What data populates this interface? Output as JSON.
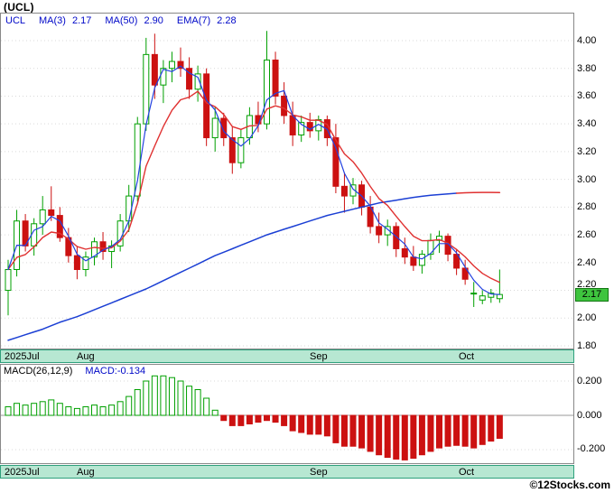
{
  "window": {
    "title": "(UCL)",
    "copyright": "©12Stocks.com"
  },
  "legend": {
    "symbol": "UCL",
    "items": [
      {
        "label": "MA(3)",
        "value": "2.17"
      },
      {
        "label": "MA(50)",
        "value": "2.90"
      },
      {
        "label": "EMA(7)",
        "value": "2.28"
      }
    ]
  },
  "price_tag": {
    "value": "2.17"
  },
  "macd_legend": {
    "label": "MACD(26,12,9)",
    "value": "MACD:-0.134"
  },
  "axes": {
    "price_ticks": [
      "4.00",
      "3.80",
      "3.60",
      "3.40",
      "3.20",
      "3.00",
      "2.80",
      "2.60",
      "2.40",
      "2.20",
      "2.00",
      "1.80"
    ],
    "macd_ticks": [
      "0.200",
      "0.000",
      "-0.200"
    ],
    "months": [
      {
        "label": "2025Jul"
      },
      {
        "label": "Aug"
      },
      {
        "label": "Sep"
      },
      {
        "label": "Oct"
      }
    ]
  },
  "colors": {
    "up": "#00a000",
    "down": "#cc1111",
    "ma3": "#2342e0",
    "ma50": "#1b3fd4",
    "ema7": "#e03131",
    "axis_bar_bg": "#b7e7d2",
    "axis_bar_border": "#2fa07c",
    "price_tag_bg": "#3ec43e",
    "grid": "#d9d9d9",
    "box": "#888888"
  },
  "chart_data": [
    {
      "type": "candlestick",
      "title": "(UCL) daily price with MA(3), MA(50), EMA(7)",
      "ylim": [
        1.78,
        4.2
      ],
      "yticks": [
        4.0,
        3.8,
        3.6,
        3.4,
        3.2,
        3.0,
        2.8,
        2.6,
        2.4,
        2.2,
        2.0,
        1.8
      ],
      "last_close": 2.17,
      "ma3_last": 2.17,
      "ma50_last": 2.9,
      "ema7_last": 2.28,
      "month_starts": [
        {
          "label": "2025Jul",
          "index": 0
        },
        {
          "label": "Aug",
          "index": 8
        },
        {
          "label": "Sep",
          "index": 35
        },
        {
          "label": "Oct",
          "index": 52
        }
      ],
      "candles": [
        [
          2.2,
          2.42,
          2.02,
          2.35
        ],
        [
          2.35,
          2.78,
          2.3,
          2.7
        ],
        [
          2.7,
          2.75,
          2.48,
          2.52
        ],
        [
          2.52,
          2.72,
          2.45,
          2.68
        ],
        [
          2.68,
          2.88,
          2.6,
          2.78
        ],
        [
          2.78,
          2.95,
          2.7,
          2.74
        ],
        [
          2.74,
          2.8,
          2.55,
          2.58
        ],
        [
          2.58,
          2.65,
          2.4,
          2.45
        ],
        [
          2.45,
          2.52,
          2.28,
          2.35
        ],
        [
          2.35,
          2.48,
          2.3,
          2.44
        ],
        [
          2.44,
          2.58,
          2.38,
          2.55
        ],
        [
          2.55,
          2.62,
          2.42,
          2.48
        ],
        [
          2.48,
          2.56,
          2.36,
          2.52
        ],
        [
          2.52,
          2.75,
          2.48,
          2.7
        ],
        [
          2.7,
          2.96,
          2.62,
          2.88
        ],
        [
          2.88,
          3.45,
          2.84,
          3.4
        ],
        [
          3.4,
          4.02,
          3.35,
          3.9
        ],
        [
          3.9,
          4.05,
          3.58,
          3.68
        ],
        [
          3.68,
          3.86,
          3.55,
          3.8
        ],
        [
          3.8,
          3.92,
          3.7,
          3.85
        ],
        [
          3.85,
          3.95,
          3.74,
          3.8
        ],
        [
          3.8,
          3.88,
          3.58,
          3.65
        ],
        [
          3.65,
          3.82,
          3.56,
          3.76
        ],
        [
          3.76,
          3.8,
          3.24,
          3.3
        ],
        [
          3.3,
          3.52,
          3.2,
          3.44
        ],
        [
          3.44,
          3.48,
          3.24,
          3.3
        ],
        [
          3.3,
          3.38,
          3.04,
          3.12
        ],
        [
          3.12,
          3.36,
          3.08,
          3.3
        ],
        [
          3.3,
          3.52,
          3.25,
          3.46
        ],
        [
          3.46,
          3.56,
          3.34,
          3.4
        ],
        [
          3.4,
          4.07,
          3.36,
          3.86
        ],
        [
          3.86,
          3.92,
          3.54,
          3.6
        ],
        [
          3.6,
          3.7,
          3.4,
          3.46
        ],
        [
          3.46,
          3.56,
          3.24,
          3.32
        ],
        [
          3.32,
          3.46,
          3.27,
          3.41
        ],
        [
          3.41,
          3.48,
          3.3,
          3.35
        ],
        [
          3.35,
          3.46,
          3.28,
          3.43
        ],
        [
          3.43,
          3.46,
          3.24,
          3.3
        ],
        [
          3.3,
          3.4,
          2.9,
          2.95
        ],
        [
          2.95,
          3.05,
          2.76,
          2.88
        ],
        [
          2.88,
          3.01,
          2.82,
          2.96
        ],
        [
          2.96,
          2.99,
          2.74,
          2.8
        ],
        [
          2.8,
          2.88,
          2.61,
          2.66
        ],
        [
          2.66,
          2.76,
          2.54,
          2.6
        ],
        [
          2.6,
          2.71,
          2.52,
          2.66
        ],
        [
          2.66,
          2.69,
          2.44,
          2.5
        ],
        [
          2.5,
          2.58,
          2.39,
          2.44
        ],
        [
          2.44,
          2.52,
          2.34,
          2.38
        ],
        [
          2.38,
          2.49,
          2.32,
          2.46
        ],
        [
          2.46,
          2.61,
          2.42,
          2.56
        ],
        [
          2.56,
          2.63,
          2.47,
          2.59
        ],
        [
          2.59,
          2.61,
          2.41,
          2.46
        ],
        [
          2.46,
          2.5,
          2.31,
          2.36
        ],
        [
          2.36,
          2.42,
          2.24,
          2.28
        ],
        [
          2.18,
          2.26,
          2.08,
          2.18
        ],
        [
          2.13,
          2.2,
          2.1,
          2.16
        ],
        [
          2.15,
          2.21,
          2.11,
          2.18
        ],
        [
          2.14,
          2.35,
          2.11,
          2.17
        ]
      ],
      "ma50": [
        1.84,
        1.86,
        1.88,
        1.9,
        1.92,
        1.945,
        1.97,
        1.99,
        2.01,
        2.035,
        2.06,
        2.085,
        2.11,
        2.135,
        2.16,
        2.185,
        2.21,
        2.24,
        2.27,
        2.3,
        2.33,
        2.36,
        2.39,
        2.42,
        2.45,
        2.475,
        2.5,
        2.525,
        2.55,
        2.575,
        2.6,
        2.62,
        2.64,
        2.66,
        2.68,
        2.7,
        2.72,
        2.74,
        2.755,
        2.77,
        2.785,
        2.8,
        2.815,
        2.83,
        2.84,
        2.85,
        2.86,
        2.87,
        2.878,
        2.885,
        2.89,
        2.895,
        2.9,
        2.903,
        2.905,
        2.906,
        2.906,
        2.905
      ],
      "ma50_red_tail_from": 52
    },
    {
      "type": "bar",
      "title": "MACD(26,12,9)",
      "current": -0.134,
      "ylim": [
        -0.3,
        0.28
      ],
      "yticks": [
        0.2,
        0.0,
        -0.2
      ],
      "values": [
        0.05,
        0.07,
        0.06,
        0.07,
        0.08,
        0.09,
        0.07,
        0.05,
        0.04,
        0.05,
        0.06,
        0.05,
        0.06,
        0.08,
        0.11,
        0.15,
        0.2,
        0.23,
        0.23,
        0.22,
        0.2,
        0.17,
        0.15,
        0.1,
        0.03,
        -0.03,
        -0.06,
        -0.06,
        -0.05,
        -0.04,
        -0.03,
        -0.04,
        -0.06,
        -0.09,
        -0.1,
        -0.11,
        -0.11,
        -0.12,
        -0.16,
        -0.18,
        -0.18,
        -0.19,
        -0.21,
        -0.23,
        -0.245,
        -0.255,
        -0.26,
        -0.25,
        -0.23,
        -0.21,
        -0.19,
        -0.18,
        -0.175,
        -0.18,
        -0.19,
        -0.17,
        -0.15,
        -0.134
      ]
    }
  ]
}
